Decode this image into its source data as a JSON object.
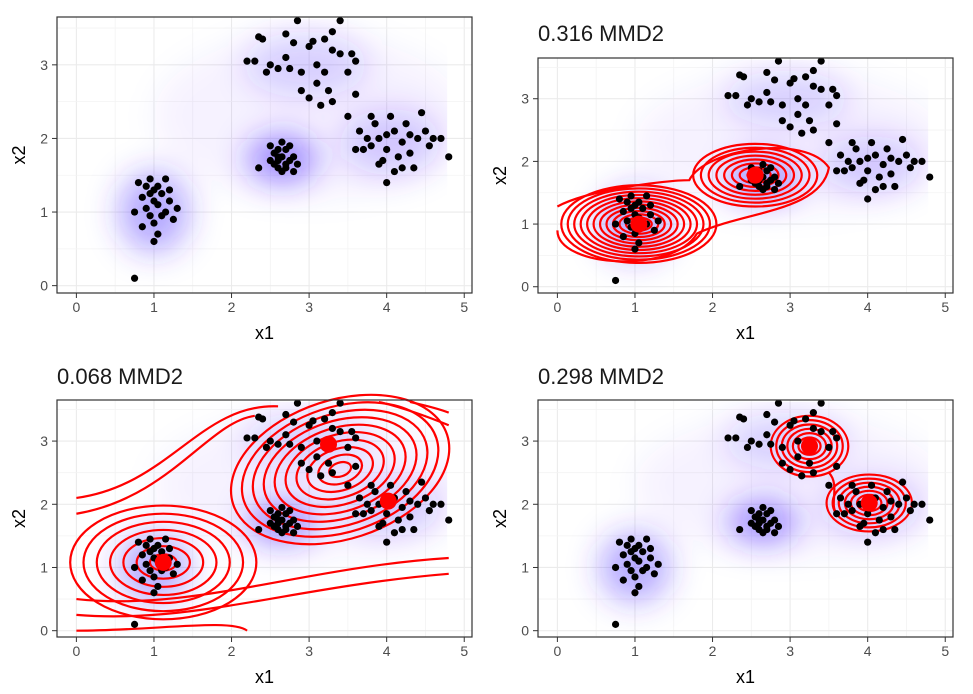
{
  "chart_data": [
    {
      "type": "scatter",
      "panel": "top-left",
      "title": "",
      "xlabel": "x1",
      "ylabel": "x2",
      "xlim": [
        -0.25,
        5.1
      ],
      "ylim": [
        -0.1,
        3.65
      ],
      "xticks": [
        "0",
        "1",
        "2",
        "3",
        "4",
        "5"
      ],
      "yticks": [
        "0",
        "1",
        "2",
        "3"
      ],
      "points": [
        [
          0.95,
          0.95
        ],
        [
          1.05,
          1.1
        ],
        [
          1.0,
          1.3
        ],
        [
          0.85,
          1.2
        ],
        [
          1.15,
          1.0
        ],
        [
          0.9,
          1.05
        ],
        [
          1.1,
          1.25
        ],
        [
          1.0,
          0.85
        ],
        [
          0.8,
          1.4
        ],
        [
          1.2,
          1.3
        ],
        [
          0.95,
          1.45
        ],
        [
          1.05,
          0.7
        ],
        [
          0.75,
          1.0
        ],
        [
          1.25,
          0.9
        ],
        [
          1.0,
          1.15
        ],
        [
          1.1,
          0.95
        ],
        [
          0.9,
          1.35
        ],
        [
          1.15,
          1.45
        ],
        [
          0.85,
          0.8
        ],
        [
          1.2,
          1.15
        ],
        [
          1.0,
          0.6
        ],
        [
          0.95,
          1.25
        ],
        [
          1.05,
          1.35
        ],
        [
          1.3,
          1.05
        ],
        [
          0.75,
          0.1
        ],
        [
          2.6,
          1.7
        ],
        [
          2.65,
          1.75
        ],
        [
          2.7,
          1.65
        ],
        [
          2.55,
          1.8
        ],
        [
          2.75,
          1.7
        ],
        [
          2.6,
          1.6
        ],
        [
          2.7,
          1.85
        ],
        [
          2.5,
          1.7
        ],
        [
          2.8,
          1.75
        ],
        [
          2.65,
          1.55
        ],
        [
          2.55,
          1.65
        ],
        [
          2.75,
          1.9
        ],
        [
          2.6,
          1.85
        ],
        [
          2.7,
          1.6
        ],
        [
          2.35,
          1.6
        ],
        [
          2.85,
          1.65
        ],
        [
          2.65,
          1.95
        ],
        [
          2.5,
          1.9
        ],
        [
          2.8,
          1.55
        ],
        [
          2.6,
          1.75
        ],
        [
          2.3,
          3.05
        ],
        [
          2.5,
          3.0
        ],
        [
          2.7,
          3.1
        ],
        [
          2.9,
          2.9
        ],
        [
          3.1,
          3.0
        ],
        [
          3.3,
          3.2
        ],
        [
          2.2,
          3.05
        ],
        [
          2.4,
          3.35
        ],
        [
          2.6,
          2.95
        ],
        [
          2.8,
          3.3
        ],
        [
          3.0,
          3.25
        ],
        [
          3.2,
          3.35
        ],
        [
          3.4,
          3.15
        ],
        [
          2.9,
          2.65
        ],
        [
          3.1,
          2.75
        ],
        [
          3.3,
          2.5
        ],
        [
          3.0,
          2.55
        ],
        [
          3.2,
          2.9
        ],
        [
          2.75,
          2.95
        ],
        [
          3.5,
          2.9
        ],
        [
          3.6,
          2.6
        ],
        [
          2.35,
          3.38
        ],
        [
          2.85,
          3.6
        ],
        [
          3.4,
          3.6
        ],
        [
          3.05,
          3.32
        ],
        [
          3.25,
          2.65
        ],
        [
          3.15,
          2.45
        ],
        [
          2.45,
          2.9
        ],
        [
          3.6,
          3.05
        ],
        [
          3.55,
          3.15
        ],
        [
          3.3,
          3.45
        ],
        [
          2.7,
          3.42
        ],
        [
          3.8,
          1.9
        ],
        [
          3.9,
          2.0
        ],
        [
          4.0,
          1.85
        ],
        [
          4.1,
          2.1
        ],
        [
          4.2,
          1.95
        ],
        [
          3.7,
          1.85
        ],
        [
          4.3,
          1.8
        ],
        [
          4.4,
          2.0
        ],
        [
          4.5,
          2.1
        ],
        [
          3.85,
          2.2
        ],
        [
          3.95,
          1.7
        ],
        [
          4.05,
          2.3
        ],
        [
          4.15,
          1.75
        ],
        [
          4.25,
          2.2
        ],
        [
          3.75,
          2.0
        ],
        [
          4.35,
          1.6
        ],
        [
          4.55,
          1.9
        ],
        [
          3.6,
          1.85
        ],
        [
          3.65,
          2.1
        ],
        [
          4.0,
          1.4
        ],
        [
          4.1,
          1.55
        ],
        [
          4.45,
          2.35
        ],
        [
          4.6,
          2.0
        ],
        [
          3.9,
          1.65
        ],
        [
          4.2,
          1.6
        ],
        [
          4.0,
          2.05
        ],
        [
          4.3,
          2.05
        ],
        [
          4.7,
          2.0
        ],
        [
          4.8,
          1.75
        ],
        [
          3.5,
          2.3
        ],
        [
          3.8,
          2.3
        ]
      ]
    },
    {
      "type": "scatter",
      "panel": "top-right",
      "title": "0.316 MMD2",
      "xlabel": "x1",
      "ylabel": "x2",
      "xlim": [
        -0.25,
        5.1
      ],
      "ylim": [
        -0.1,
        3.65
      ],
      "xticks": [
        "0",
        "1",
        "2",
        "3",
        "4",
        "5"
      ],
      "yticks": [
        "0",
        "1",
        "2",
        "3"
      ],
      "centers": [
        [
          1.05,
          1.0
        ],
        [
          2.55,
          1.78
        ]
      ],
      "contours": {
        "color": "#ff0000"
      }
    },
    {
      "type": "scatter",
      "panel": "bottom-left",
      "title": "0.068 MMD2",
      "xlabel": "x1",
      "ylabel": "x2",
      "xlim": [
        -0.25,
        5.1
      ],
      "ylim": [
        -0.1,
        3.65
      ],
      "xticks": [
        "0",
        "1",
        "2",
        "3",
        "4",
        "5"
      ],
      "yticks": [
        "0",
        "1",
        "2",
        "3"
      ],
      "centers": [
        [
          1.12,
          1.08
        ],
        [
          3.25,
          2.95
        ],
        [
          4.02,
          2.05
        ]
      ],
      "contours": {
        "color": "#ff0000"
      }
    },
    {
      "type": "scatter",
      "panel": "bottom-right",
      "title": "0.298 MMD2",
      "xlabel": "x1",
      "ylabel": "x2",
      "xlim": [
        -0.25,
        5.1
      ],
      "ylim": [
        -0.1,
        3.65
      ],
      "xticks": [
        "0",
        "1",
        "2",
        "3",
        "4",
        "5"
      ],
      "yticks": [
        "0",
        "1",
        "2",
        "3"
      ],
      "centers": [
        [
          3.25,
          2.92
        ],
        [
          4.02,
          2.02
        ]
      ],
      "contours": {
        "color": "#ff0000"
      }
    }
  ],
  "colors": {
    "density": "#4f2bff",
    "points": "#000000",
    "contour": "#ff0000",
    "center": "#ff0000",
    "panel_border": "#333333",
    "grid": "#ebebeb"
  }
}
